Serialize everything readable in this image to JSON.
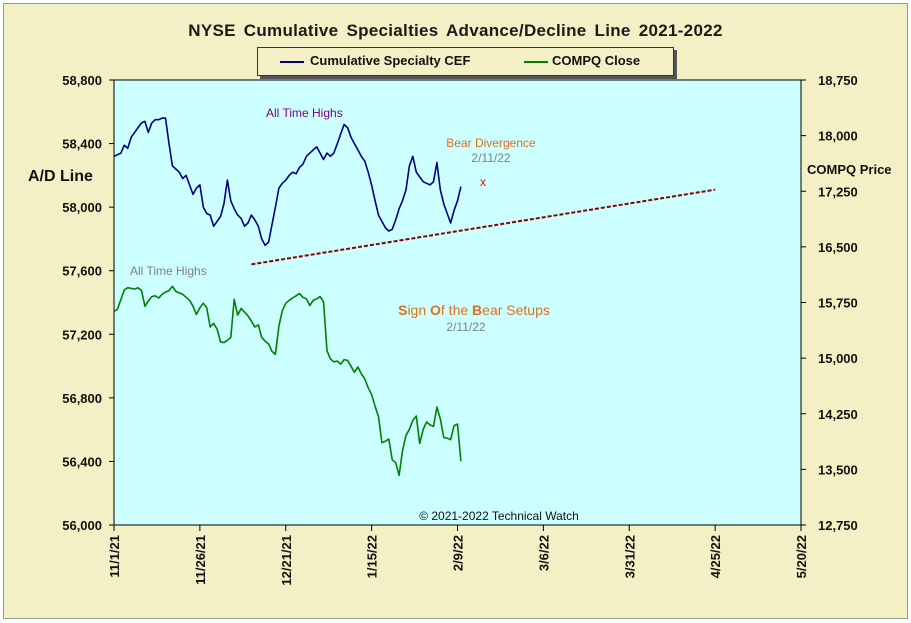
{
  "chart_data": {
    "type": "line",
    "title": "NYSE Cumulative  Specialties  Advance/Decline  Line  2021-2022",
    "ylabel_left": "A/D Line",
    "ylabel_right": "COMPQ Price",
    "legend_position": "top-center",
    "colors": {
      "ad_line": "#000080",
      "compq": "#008000",
      "trend": "#8b0000",
      "plot_bg": "#ccffff",
      "frame_bg": "#f4f0c6",
      "annotation_orange": "#e07020",
      "annotation_gray": "#808080",
      "annotation_purple": "#800080",
      "marker_red": "#ff0000"
    },
    "x_ticks": [
      "11/1/21",
      "11/26/21",
      "12/21/21",
      "1/15/22",
      "2/9/22",
      "3/6/22",
      "3/31/22",
      "4/25/22",
      "5/20/22"
    ],
    "x_tick_days": [
      0,
      25,
      50,
      75,
      100,
      125,
      150,
      175,
      200
    ],
    "xlim_days": [
      0,
      200
    ],
    "ylim_left": [
      56000,
      58800
    ],
    "yticks_left": [
      "58,800",
      "58,400",
      "58,000",
      "57,600",
      "57,200",
      "56,800",
      "56,400",
      "56,000"
    ],
    "ylim_right": [
      12750,
      18750
    ],
    "yticks_right": [
      "18,750",
      "18,000",
      "17,250",
      "16,500",
      "15,750",
      "15,000",
      "14,250",
      "13,500",
      "12,750"
    ],
    "series": [
      {
        "name": "Cumulative Specialty CEF",
        "axis": "left",
        "points": [
          [
            0,
            58320
          ],
          [
            2,
            58340
          ],
          [
            3,
            58390
          ],
          [
            4,
            58370
          ],
          [
            5,
            58440
          ],
          [
            6,
            58470
          ],
          [
            7,
            58500
          ],
          [
            8,
            58530
          ],
          [
            9,
            58540
          ],
          [
            10,
            58470
          ],
          [
            11,
            58530
          ],
          [
            12,
            58550
          ],
          [
            13,
            58550
          ],
          [
            14,
            58560
          ],
          [
            15,
            58560
          ],
          [
            16,
            58400
          ],
          [
            17,
            58260
          ],
          [
            18,
            58240
          ],
          [
            19,
            58220
          ],
          [
            20,
            58180
          ],
          [
            21,
            58200
          ],
          [
            23,
            58080
          ],
          [
            24,
            58120
          ],
          [
            25,
            58140
          ],
          [
            26,
            58000
          ],
          [
            27,
            57960
          ],
          [
            28,
            57950
          ],
          [
            29,
            57880
          ],
          [
            30,
            57910
          ],
          [
            31,
            57940
          ],
          [
            32,
            58020
          ],
          [
            33,
            58170
          ],
          [
            34,
            58040
          ],
          [
            35,
            57990
          ],
          [
            36,
            57950
          ],
          [
            37,
            57930
          ],
          [
            38,
            57880
          ],
          [
            39,
            57900
          ],
          [
            40,
            57950
          ],
          [
            41,
            57920
          ],
          [
            42,
            57880
          ],
          [
            43,
            57800
          ],
          [
            44,
            57760
          ],
          [
            45,
            57780
          ],
          [
            46,
            57890
          ],
          [
            47,
            58000
          ],
          [
            48,
            58120
          ],
          [
            49,
            58150
          ],
          [
            50,
            58170
          ],
          [
            51,
            58200
          ],
          [
            52,
            58220
          ],
          [
            53,
            58210
          ],
          [
            54,
            58250
          ],
          [
            55,
            58270
          ],
          [
            56,
            58320
          ],
          [
            57,
            58340
          ],
          [
            58,
            58360
          ],
          [
            59,
            58380
          ],
          [
            60,
            58340
          ],
          [
            61,
            58300
          ],
          [
            62,
            58340
          ],
          [
            63,
            58320
          ],
          [
            64,
            58340
          ],
          [
            65,
            58400
          ],
          [
            66,
            58460
          ],
          [
            67,
            58520
          ],
          [
            68,
            58500
          ],
          [
            69,
            58440
          ],
          [
            70,
            58400
          ],
          [
            71,
            58360
          ],
          [
            72,
            58320
          ],
          [
            73,
            58290
          ],
          [
            74,
            58220
          ],
          [
            75,
            58140
          ],
          [
            76,
            58040
          ],
          [
            77,
            57950
          ],
          [
            78,
            57910
          ],
          [
            79,
            57870
          ],
          [
            80,
            57850
          ],
          [
            81,
            57860
          ],
          [
            82,
            57920
          ],
          [
            83,
            57990
          ],
          [
            84,
            58040
          ],
          [
            85,
            58110
          ],
          [
            86,
            58260
          ],
          [
            87,
            58320
          ],
          [
            88,
            58220
          ],
          [
            89,
            58190
          ],
          [
            90,
            58160
          ],
          [
            91,
            58150
          ],
          [
            92,
            58140
          ],
          [
            93,
            58160
          ],
          [
            94,
            58280
          ],
          [
            95,
            58110
          ],
          [
            96,
            58020
          ],
          [
            97,
            57960
          ],
          [
            98,
            57900
          ],
          [
            99,
            57980
          ],
          [
            100,
            58040
          ],
          [
            101,
            58130
          ]
        ]
      },
      {
        "name": "COMPQ Close",
        "axis": "right",
        "points": [
          [
            0,
            15630
          ],
          [
            1,
            15660
          ],
          [
            2,
            15790
          ],
          [
            3,
            15920
          ],
          [
            4,
            15950
          ],
          [
            5,
            15940
          ],
          [
            6,
            15930
          ],
          [
            7,
            15950
          ],
          [
            8,
            15910
          ],
          [
            9,
            15700
          ],
          [
            10,
            15770
          ],
          [
            11,
            15830
          ],
          [
            12,
            15840
          ],
          [
            13,
            15810
          ],
          [
            14,
            15860
          ],
          [
            15,
            15890
          ],
          [
            16,
            15910
          ],
          [
            17,
            15970
          ],
          [
            18,
            15900
          ],
          [
            19,
            15880
          ],
          [
            20,
            15860
          ],
          [
            21,
            15820
          ],
          [
            22,
            15780
          ],
          [
            23,
            15700
          ],
          [
            24,
            15590
          ],
          [
            25,
            15680
          ],
          [
            26,
            15740
          ],
          [
            27,
            15680
          ],
          [
            28,
            15420
          ],
          [
            29,
            15470
          ],
          [
            30,
            15390
          ],
          [
            31,
            15220
          ],
          [
            32,
            15210
          ],
          [
            33,
            15240
          ],
          [
            34,
            15280
          ],
          [
            35,
            15790
          ],
          [
            36,
            15580
          ],
          [
            37,
            15670
          ],
          [
            38,
            15620
          ],
          [
            39,
            15570
          ],
          [
            40,
            15500
          ],
          [
            41,
            15420
          ],
          [
            42,
            15450
          ],
          [
            43,
            15280
          ],
          [
            44,
            15230
          ],
          [
            45,
            15190
          ],
          [
            46,
            15090
          ],
          [
            47,
            15050
          ],
          [
            48,
            15430
          ],
          [
            49,
            15640
          ],
          [
            50,
            15740
          ],
          [
            51,
            15780
          ],
          [
            52,
            15810
          ],
          [
            53,
            15840
          ],
          [
            54,
            15870
          ],
          [
            55,
            15820
          ],
          [
            56,
            15800
          ],
          [
            57,
            15710
          ],
          [
            58,
            15780
          ],
          [
            59,
            15800
          ],
          [
            60,
            15830
          ],
          [
            61,
            15760
          ],
          [
            62,
            15100
          ],
          [
            63,
            14990
          ],
          [
            64,
            14950
          ],
          [
            65,
            14960
          ],
          [
            66,
            14920
          ],
          [
            67,
            14980
          ],
          [
            68,
            14970
          ],
          [
            69,
            14890
          ],
          [
            70,
            14810
          ],
          [
            71,
            14880
          ],
          [
            72,
            14790
          ],
          [
            73,
            14720
          ],
          [
            74,
            14600
          ],
          [
            75,
            14510
          ],
          [
            76,
            14350
          ],
          [
            77,
            14210
          ],
          [
            78,
            13860
          ],
          [
            79,
            13880
          ],
          [
            80,
            13910
          ],
          [
            81,
            13630
          ],
          [
            82,
            13590
          ],
          [
            83,
            13420
          ],
          [
            84,
            13750
          ],
          [
            85,
            13960
          ],
          [
            86,
            14040
          ],
          [
            87,
            14160
          ],
          [
            88,
            14220
          ],
          [
            89,
            13850
          ],
          [
            90,
            14040
          ],
          [
            91,
            14140
          ],
          [
            92,
            14100
          ],
          [
            93,
            14080
          ],
          [
            94,
            14340
          ],
          [
            95,
            14180
          ],
          [
            96,
            13930
          ],
          [
            97,
            13920
          ],
          [
            98,
            13900
          ],
          [
            99,
            14090
          ],
          [
            100,
            14110
          ],
          [
            101,
            13610
          ]
        ]
      }
    ],
    "trendline": {
      "from": [
        40,
        57640
      ],
      "to": [
        175,
        58110
      ]
    },
    "annotations": {
      "ath_top": "All Time Highs",
      "ath_bottom": "All Time Highs",
      "bear_div": "Bear Divergence",
      "bear_div_date": "2/11/22",
      "marker": "x",
      "setup_parts": [
        {
          "t": "S",
          "c": "#e07020"
        },
        {
          "t": "ign ",
          "c": "#e07020"
        },
        {
          "t": "O",
          "c": "#e07020"
        },
        {
          "t": "f the ",
          "c": "#e07020"
        },
        {
          "t": "B",
          "c": "#e07020"
        },
        {
          "t": "ear Setups",
          "c": "#e07020"
        }
      ],
      "setup_date": "2/11/22",
      "copyright": "© 2021-2022  Technical Watch"
    }
  }
}
